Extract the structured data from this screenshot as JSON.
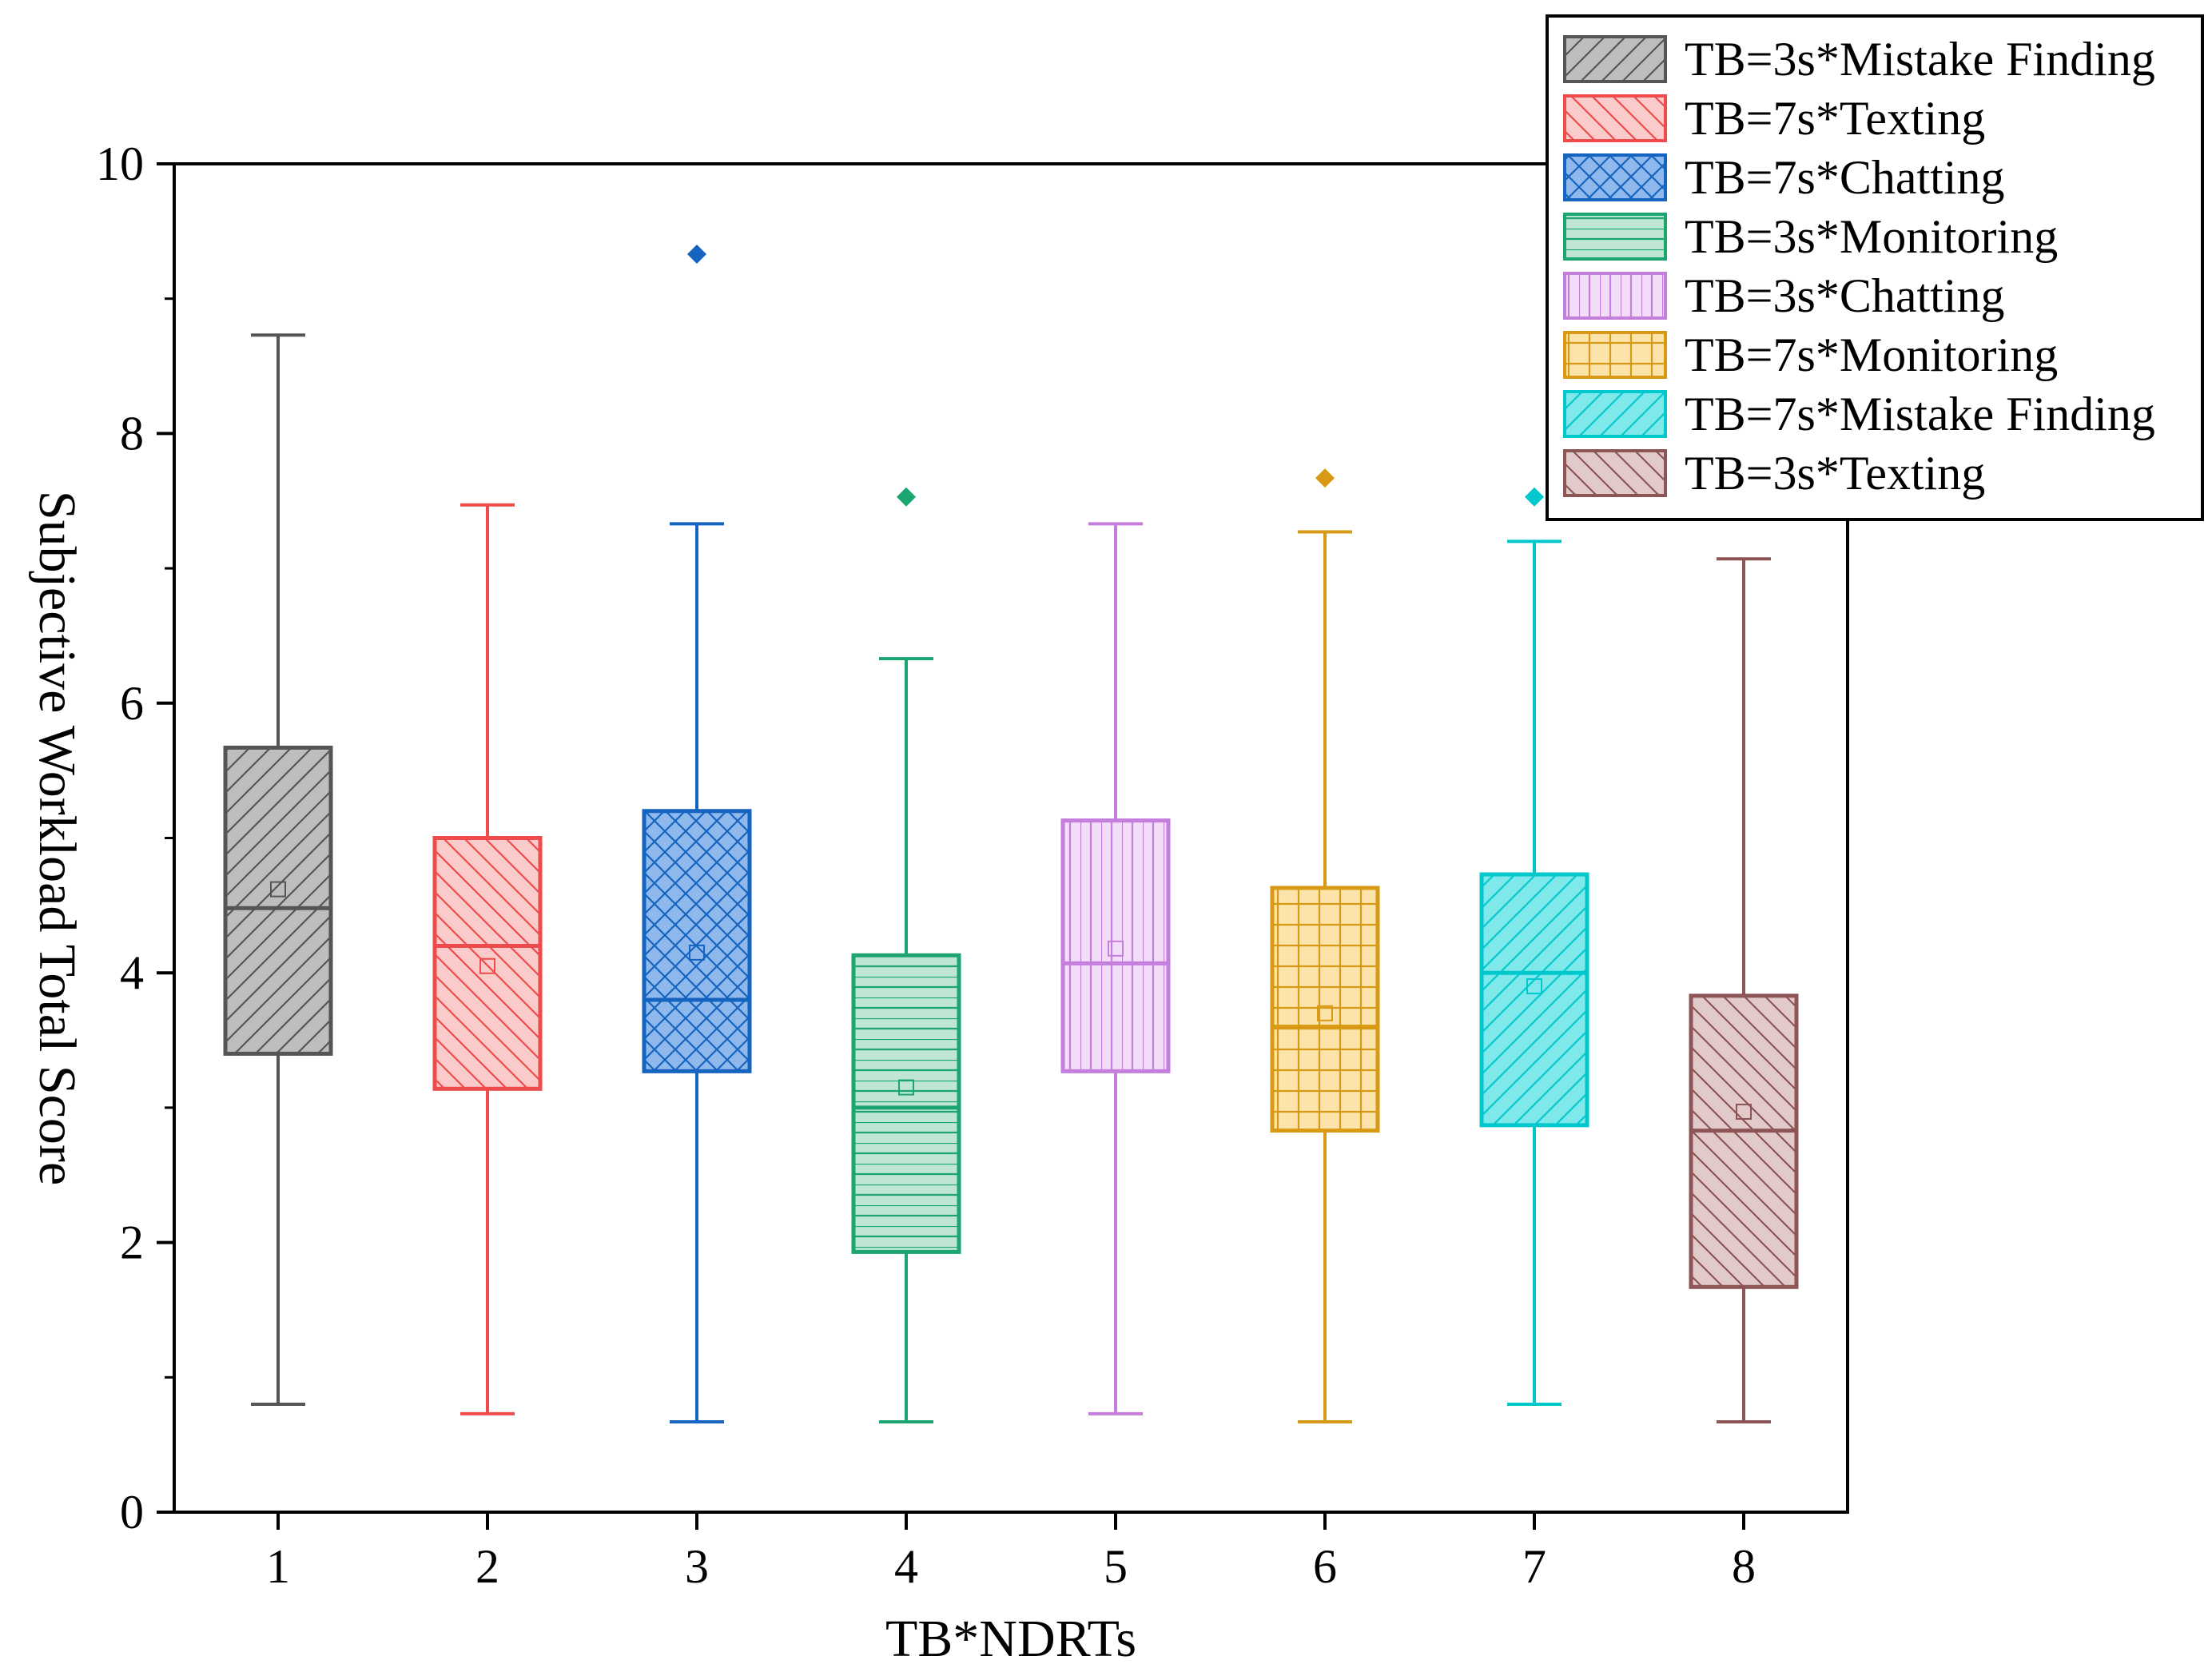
{
  "chart_data": {
    "type": "box",
    "xlabel": "TB*NDRTs",
    "ylabel": "Subjective Workload Total Score",
    "ylim": [
      0,
      10
    ],
    "yticks": [
      0,
      2,
      4,
      6,
      8,
      10
    ],
    "categories": [
      "1",
      "2",
      "3",
      "4",
      "5",
      "6",
      "7",
      "8"
    ],
    "legend_position": "top-right",
    "series": [
      {
        "name": "TB=3s*Mistake Finding",
        "category": "1",
        "whisker_low": 0.8,
        "q1": 3.4,
        "median": 4.48,
        "q3": 5.67,
        "whisker_high": 8.73,
        "mean": 4.62,
        "outliers": [],
        "color": "#555555",
        "fill": "#bdbdbd",
        "pattern": "diag-right"
      },
      {
        "name": "TB=7s*Texting",
        "category": "2",
        "whisker_low": 0.73,
        "q1": 3.14,
        "median": 4.2,
        "q3": 5.0,
        "whisker_high": 7.47,
        "mean": 4.05,
        "outliers": [],
        "color": "#ee4b4b",
        "fill": "#fbcaca",
        "pattern": "diag-left"
      },
      {
        "name": "TB=7s*Chatting",
        "category": "3",
        "whisker_low": 0.67,
        "q1": 3.27,
        "median": 3.8,
        "q3": 5.2,
        "whisker_high": 7.33,
        "mean": 4.15,
        "outliers": [
          9.33
        ],
        "color": "#1565c0",
        "fill": "#8fb8ec",
        "pattern": "cross"
      },
      {
        "name": "TB=3s*Monitoring",
        "category": "4",
        "whisker_low": 0.67,
        "q1": 1.93,
        "median": 3.0,
        "q3": 4.13,
        "whisker_high": 6.33,
        "mean": 3.15,
        "outliers": [
          7.53
        ],
        "color": "#1ba571",
        "fill": "#bfe6d3",
        "pattern": "horizontal"
      },
      {
        "name": "TB=3s*Chatting",
        "category": "5",
        "whisker_low": 0.73,
        "q1": 3.27,
        "median": 4.07,
        "q3": 5.13,
        "whisker_high": 7.33,
        "mean": 4.18,
        "outliers": [],
        "color": "#c47fdc",
        "fill": "#f2dcf8",
        "pattern": "vertical"
      },
      {
        "name": "TB=7s*Monitoring",
        "category": "6",
        "whisker_low": 0.67,
        "q1": 2.83,
        "median": 3.6,
        "q3": 4.63,
        "whisker_high": 7.27,
        "mean": 3.7,
        "outliers": [
          7.67
        ],
        "color": "#d89a15",
        "fill": "#fbe3a9",
        "pattern": "grid"
      },
      {
        "name": "TB=7s*Mistake Finding",
        "category": "7",
        "whisker_low": 0.8,
        "q1": 2.87,
        "median": 4.0,
        "q3": 4.73,
        "whisker_high": 7.2,
        "mean": 3.9,
        "outliers": [
          7.53
        ],
        "color": "#00c8cc",
        "fill": "#7fe8ea",
        "pattern": "diag-right"
      },
      {
        "name": "TB=3s*Texting",
        "category": "8",
        "whisker_low": 0.67,
        "q1": 1.67,
        "median": 2.83,
        "q3": 3.83,
        "whisker_high": 7.07,
        "mean": 2.97,
        "outliers": [],
        "color": "#8d5555",
        "fill": "#e2caca",
        "pattern": "diag-left"
      }
    ]
  }
}
